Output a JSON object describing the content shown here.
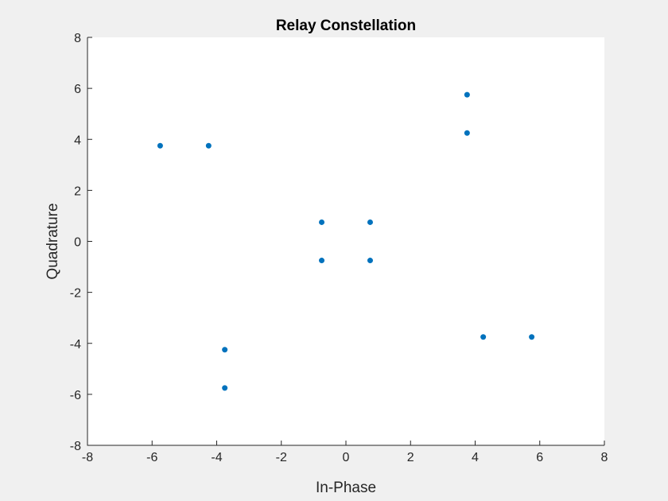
{
  "colors": {
    "figure_background": "#f0f0f0",
    "axes_background": "#ffffff",
    "axis_color": "#262626",
    "marker": "#0072bd"
  },
  "chart_data": {
    "type": "scatter",
    "title": "Relay Constellation",
    "xlabel": "In-Phase",
    "ylabel": "Quadrature",
    "xlim": [
      -8,
      8
    ],
    "ylim": [
      -8,
      8
    ],
    "xticks": [
      -8,
      -6,
      -4,
      -2,
      0,
      2,
      4,
      6,
      8
    ],
    "yticks": [
      -8,
      -6,
      -4,
      -2,
      0,
      2,
      4,
      6,
      8
    ],
    "grid": false,
    "series": [
      {
        "points": [
          {
            "x": -5.75,
            "y": 3.75
          },
          {
            "x": -4.25,
            "y": 3.75
          },
          {
            "x": -0.75,
            "y": 0.75
          },
          {
            "x": 0.75,
            "y": 0.75
          },
          {
            "x": -0.75,
            "y": -0.75
          },
          {
            "x": 0.75,
            "y": -0.75
          },
          {
            "x": 3.75,
            "y": 5.75
          },
          {
            "x": 3.75,
            "y": 4.25
          },
          {
            "x": -3.75,
            "y": -4.25
          },
          {
            "x": -3.75,
            "y": -5.75
          },
          {
            "x": 4.25,
            "y": -3.75
          },
          {
            "x": 5.75,
            "y": -3.75
          }
        ]
      }
    ]
  }
}
